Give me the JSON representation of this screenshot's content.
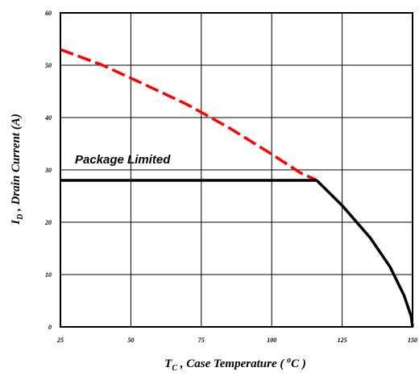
{
  "chart_data": {
    "type": "line",
    "xlabel": {
      "main": "T",
      "sub": "C",
      "rest": " , Case Temperature ( ",
      "sup": "o",
      "end": "C )"
    },
    "ylabel": {
      "main": "I",
      "sub": "D",
      "rest": " , Drain Current (A)"
    },
    "xlim": [
      25,
      150
    ],
    "ylim": [
      0,
      60
    ],
    "x_ticks": [
      "25",
      "50",
      "75",
      "100",
      "125",
      "150"
    ],
    "y_ticks": [
      "0",
      "10",
      "20",
      "30",
      "40",
      "50",
      "60"
    ],
    "grid": true,
    "annotation": "Package Limited",
    "series": [
      {
        "style": "dashed",
        "color": "#ff0000",
        "x": [
          25,
          40,
          55,
          70,
          85,
          100,
          110,
          116
        ],
        "y": [
          53,
          50,
          46.3,
          42.5,
          38,
          33,
          29.5,
          28
        ]
      },
      {
        "style": "solid",
        "color": "#000000",
        "x": [
          25,
          116
        ],
        "y": [
          28,
          28
        ]
      },
      {
        "style": "solid",
        "color": "#000000",
        "x": [
          116,
          125,
          135,
          142,
          147,
          149.5,
          150
        ],
        "y": [
          28,
          23.2,
          17,
          11.5,
          6,
          2,
          0
        ]
      }
    ]
  }
}
